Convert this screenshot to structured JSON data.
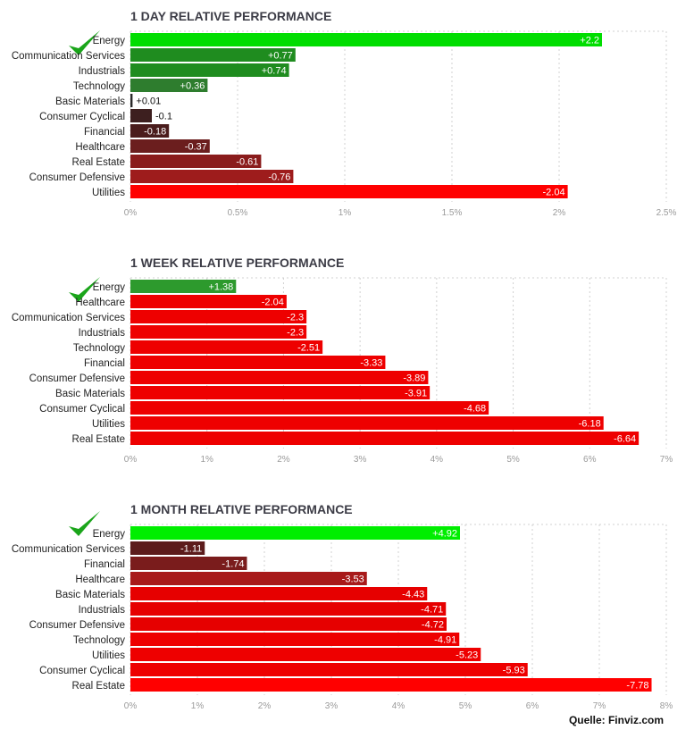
{
  "chart_data": [
    {
      "type": "bar",
      "orientation": "horizontal",
      "title": "1 DAY RELATIVE PERFORMANCE",
      "categories": [
        "Energy",
        "Communication Services",
        "Industrials",
        "Technology",
        "Basic Materials",
        "Consumer Cyclical",
        "Financial",
        "Healthcare",
        "Real Estate",
        "Consumer Defensive",
        "Utilities"
      ],
      "values": [
        2.2,
        0.77,
        0.74,
        0.36,
        0.01,
        -0.1,
        -0.18,
        -0.37,
        -0.61,
        -0.76,
        -2.04
      ],
      "value_labels": [
        "+2.2",
        "+0.77",
        "+0.74",
        "+0.36",
        "+0.01",
        "-0.1",
        "-0.18",
        "-0.37",
        "-0.61",
        "-0.76",
        "-2.04"
      ],
      "colors": [
        "#00dd00",
        "#1f8c1f",
        "#1f8c1f",
        "#2e7d2e",
        "#2a2a2a",
        "#3d1f1f",
        "#4a1c1c",
        "#6b1e1e",
        "#8a1c1c",
        "#9e1c1c",
        "#ff0000"
      ],
      "xlim": [
        0,
        2.5
      ],
      "ticks": [
        "0%",
        "0.5%",
        "1%",
        "1.5%",
        "2%",
        "2.5%"
      ],
      "grid": true
    },
    {
      "type": "bar",
      "orientation": "horizontal",
      "title": "1 WEEK RELATIVE PERFORMANCE",
      "categories": [
        "Energy",
        "Healthcare",
        "Communication Services",
        "Industrials",
        "Technology",
        "Financial",
        "Consumer Defensive",
        "Basic Materials",
        "Consumer Cyclical",
        "Utilities",
        "Real Estate"
      ],
      "values": [
        1.38,
        -2.04,
        -2.3,
        -2.3,
        -2.51,
        -3.33,
        -3.89,
        -3.91,
        -4.68,
        -6.18,
        -6.64
      ],
      "value_labels": [
        "+1.38",
        "-2.04",
        "-2.3",
        "-2.3",
        "-2.51",
        "-3.33",
        "-3.89",
        "-3.91",
        "-4.68",
        "-6.18",
        "-6.64"
      ],
      "colors": [
        "#2d9a2d",
        "#ee0000",
        "#ee0000",
        "#ee0000",
        "#ee0000",
        "#ee0000",
        "#ee0000",
        "#ee0000",
        "#ee0000",
        "#ee0000",
        "#ee0000"
      ],
      "xlim": [
        0,
        7
      ],
      "ticks": [
        "0%",
        "1%",
        "2%",
        "3%",
        "4%",
        "5%",
        "6%",
        "7%"
      ],
      "grid": true
    },
    {
      "type": "bar",
      "orientation": "horizontal",
      "title": "1 MONTH RELATIVE PERFORMANCE",
      "categories": [
        "Energy",
        "Communication Services",
        "Financial",
        "Healthcare",
        "Basic Materials",
        "Industrials",
        "Consumer Defensive",
        "Technology",
        "Utilities",
        "Consumer Cyclical",
        "Real Estate"
      ],
      "values": [
        4.92,
        -1.11,
        -1.74,
        -3.53,
        -4.43,
        -4.71,
        -4.72,
        -4.91,
        -5.23,
        -5.93,
        -7.78
      ],
      "value_labels": [
        "+4.92",
        "-1.11",
        "-1.74",
        "-3.53",
        "-4.43",
        "-4.71",
        "-4.72",
        "-4.91",
        "-5.23",
        "-5.93",
        "-7.78"
      ],
      "colors": [
        "#00ee00",
        "#5c1c1c",
        "#7a1c1c",
        "#a81a1a",
        "#e60000",
        "#e60000",
        "#e60000",
        "#ee0000",
        "#ee0000",
        "#ee0000",
        "#ff0000"
      ],
      "xlim": [
        0,
        8
      ],
      "ticks": [
        "0%",
        "1%",
        "2%",
        "3%",
        "4%",
        "5%",
        "6%",
        "7%",
        "8%"
      ],
      "grid": true
    }
  ],
  "footer": {
    "source": "Quelle: Finviz.com"
  },
  "icons": {
    "highlight": "checkmark-icon",
    "highlight_color": "#1aa51a"
  },
  "colors": {
    "grid": "#d0d0d0",
    "tick_text": "#9a9a9a",
    "title_text": "#3c3c46"
  }
}
